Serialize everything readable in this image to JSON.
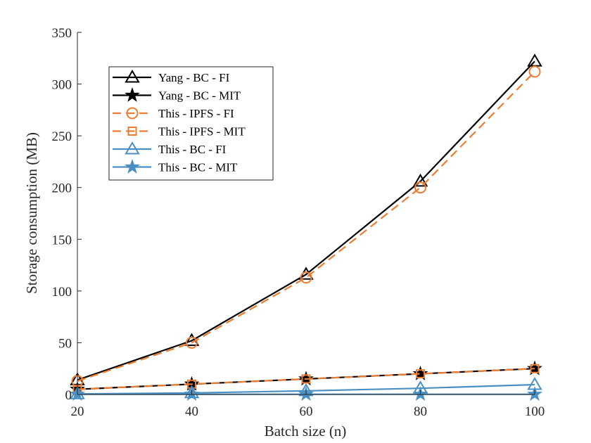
{
  "chart_data": {
    "type": "line",
    "title": "",
    "xlabel": "Batch size (n)",
    "ylabel": "Storage consumption (MB)",
    "x": [
      20,
      40,
      60,
      80,
      100
    ],
    "xticks": [
      "20",
      "40",
      "60",
      "80",
      "100"
    ],
    "yticks": [
      "0",
      "50",
      "100",
      "150",
      "200",
      "250",
      "300",
      "350"
    ],
    "xlim": [
      20,
      100
    ],
    "ylim": [
      0,
      350
    ],
    "grid": false,
    "legend_position": "top-left",
    "series": [
      {
        "name": "Yang - BC - FI",
        "values": [
          14,
          52,
          116,
          206,
          322
        ],
        "color": "#000000",
        "dash": "solid",
        "marker": "triangle"
      },
      {
        "name": "Yang - BC - MIT",
        "values": [
          5,
          10,
          15,
          20,
          25
        ],
        "color": "#000000",
        "dash": "solid",
        "marker": "star"
      },
      {
        "name": "This - IPFS - FI",
        "values": [
          13,
          50,
          113,
          200,
          312
        ],
        "color": "#ED7D31",
        "dash": "dashed",
        "marker": "circle"
      },
      {
        "name": "This - IPFS - MIT",
        "values": [
          5,
          10,
          15,
          20,
          25
        ],
        "color": "#ED7D31",
        "dash": "dashed",
        "marker": "square"
      },
      {
        "name": "This - BC - FI",
        "values": [
          0.5,
          1.5,
          3.5,
          6,
          9.5
        ],
        "color": "#4A90C4",
        "dash": "solid",
        "marker": "triangle"
      },
      {
        "name": "This - BC - MIT",
        "values": [
          0.2,
          0.2,
          0.2,
          0.2,
          0.2
        ],
        "color": "#4A90C4",
        "dash": "solid",
        "marker": "star"
      }
    ]
  }
}
